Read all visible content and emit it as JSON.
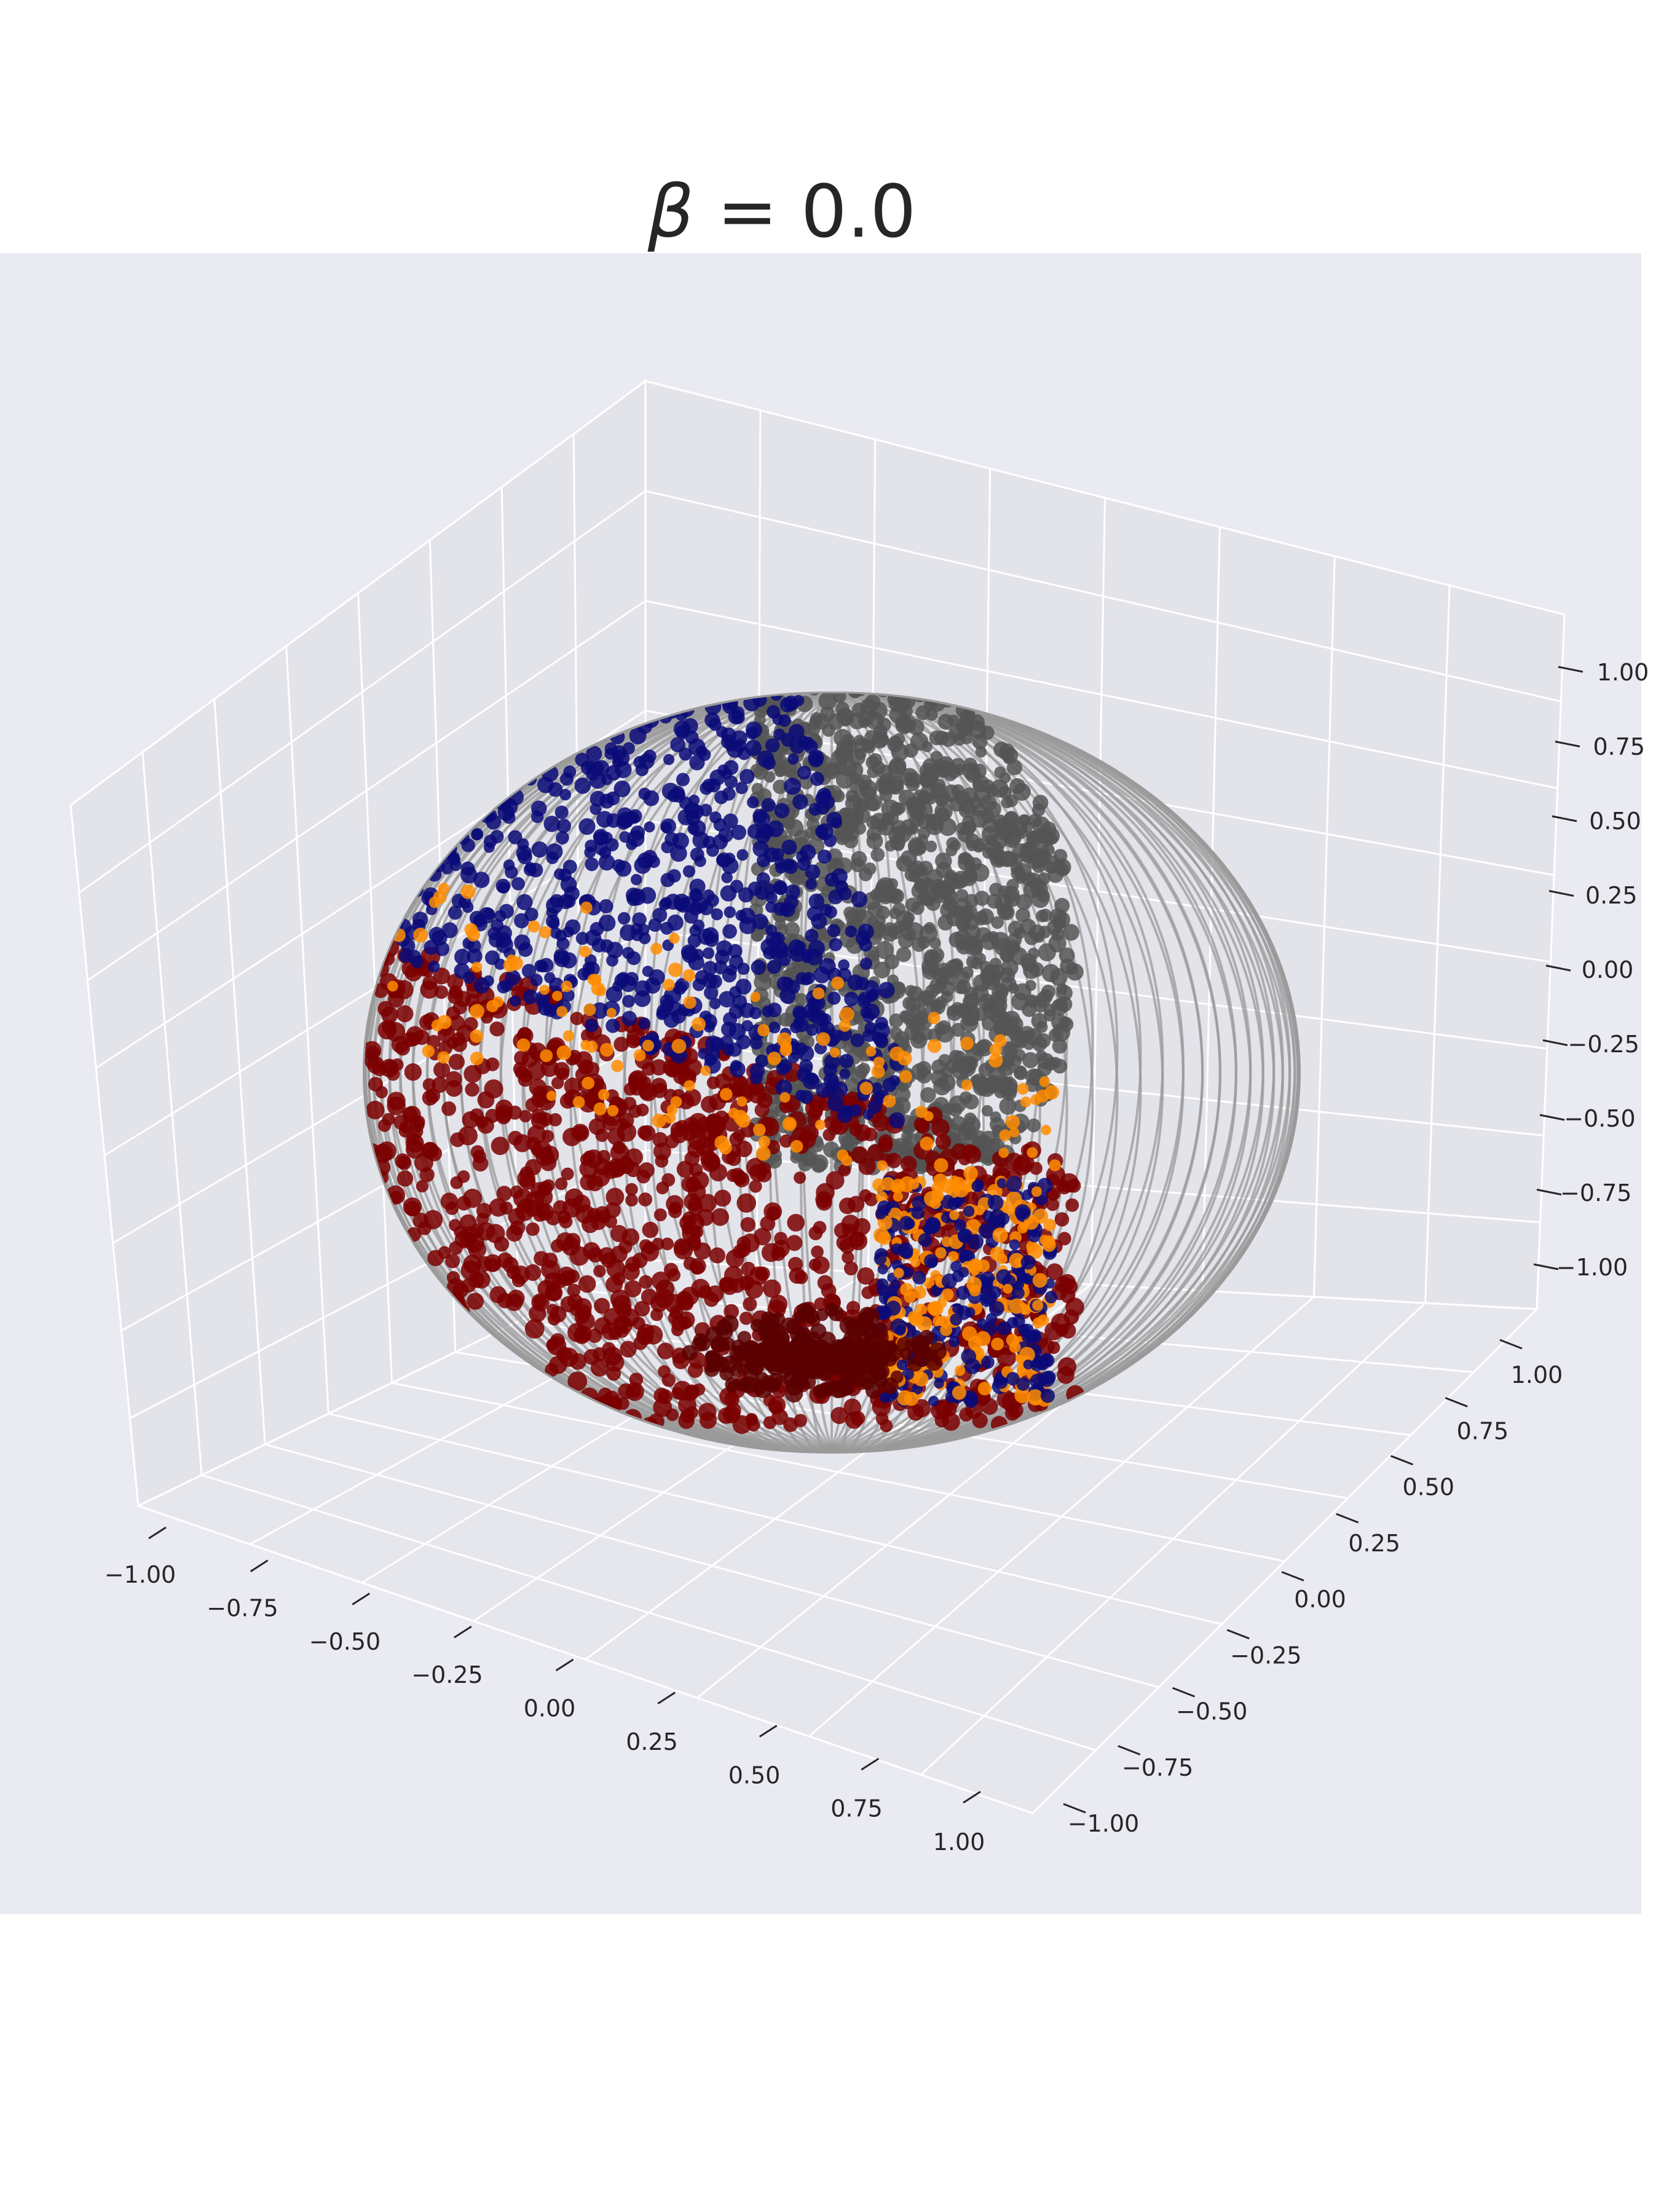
{
  "chart_data": {
    "type": "scatter",
    "projection": "3d",
    "title": "β = 0.0",
    "title_symbol": "β",
    "title_rest": " = 0.0",
    "xlabel": "",
    "ylabel": "",
    "zlabel": "",
    "xlim": [
      -1.0,
      1.0
    ],
    "ylim": [
      -1.0,
      1.0
    ],
    "zlim": [
      -1.0,
      1.0
    ],
    "grid": true,
    "legend": "none",
    "x_ticks": [
      "−1.00",
      "−0.75",
      "−0.50",
      "−0.25",
      "0.00",
      "0.25",
      "0.50",
      "0.75",
      "1.00"
    ],
    "y_ticks": [
      "−1.00",
      "−0.75",
      "−0.50",
      "−0.25",
      "0.00",
      "0.25",
      "0.50",
      "0.75",
      "1.00"
    ],
    "z_ticks": [
      "−1.00",
      "−0.75",
      "−0.50",
      "−0.25",
      "0.00",
      "0.25",
      "0.50",
      "0.75",
      "1.00"
    ],
    "surface": {
      "shape": "unit sphere wireframe",
      "radius": 1.0,
      "color": "#9a9a9a"
    },
    "series": [
      {
        "color": "#555555",
        "region": "upper right hemisphere (near +z pole)"
      },
      {
        "color": "#0a0a78",
        "region": "upper left band"
      },
      {
        "color": "#ff8c00",
        "region": "scattered along the boundary"
      },
      {
        "color": "#7a0000",
        "region": "lower left hemisphere (near −z pole)"
      }
    ],
    "colors": {
      "pane": "#eaeaf2",
      "grid": "#ffffff",
      "text": "#262626"
    }
  }
}
